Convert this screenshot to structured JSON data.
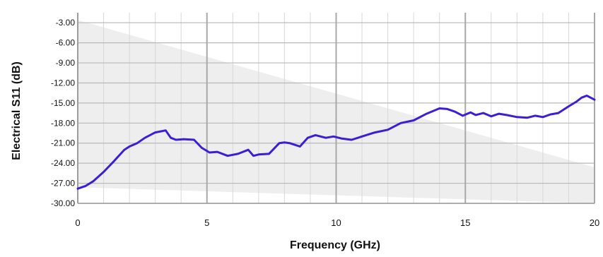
{
  "chart_data": {
    "type": "line",
    "title": "",
    "xlabel": "Frequency  (GHz)",
    "ylabel": "Electrical S11 (dB)",
    "xlim": [
      0,
      20
    ],
    "ylim": [
      -30,
      -1.5
    ],
    "x_ticks": [
      0,
      5,
      10,
      15,
      20
    ],
    "y_ticks": [
      -3.0,
      -6.0,
      -9.0,
      -12.0,
      -15.0,
      -18.0,
      -21.0,
      -24.0,
      -27.0,
      -30.0
    ],
    "x_tick_labels": [
      "0",
      "5",
      "10",
      "15",
      "20"
    ],
    "y_tick_labels": [
      "-3.00",
      "-6.00",
      "-9.00",
      "-12.00",
      "-15.00",
      "-18.00",
      "-21.00",
      "-24.00",
      "-27.00",
      "-30.00"
    ],
    "grid": true,
    "series": [
      {
        "color": "#3a1fd6",
        "x": [
          0.0,
          0.3,
          0.6,
          1.0,
          1.4,
          1.8,
          2.0,
          2.3,
          2.6,
          3.0,
          3.4,
          3.6,
          3.8,
          4.1,
          4.5,
          4.8,
          5.1,
          5.4,
          5.8,
          6.2,
          6.6,
          6.8,
          7.0,
          7.4,
          7.8,
          8.0,
          8.2,
          8.6,
          8.9,
          9.2,
          9.6,
          9.9,
          10.2,
          10.6,
          11.0,
          11.5,
          12.0,
          12.5,
          13.0,
          13.5,
          14.0,
          14.3,
          14.6,
          14.9,
          15.2,
          15.4,
          15.7,
          16.0,
          16.3,
          16.6,
          17.0,
          17.4,
          17.7,
          18.0,
          18.3,
          18.6,
          19.0,
          19.3,
          19.5,
          19.7,
          19.85,
          20.0
        ],
        "y": [
          -27.8,
          -27.4,
          -26.7,
          -25.3,
          -23.7,
          -22.0,
          -21.5,
          -21.0,
          -20.2,
          -19.4,
          -19.1,
          -20.2,
          -20.5,
          -20.4,
          -20.5,
          -21.7,
          -22.4,
          -22.3,
          -22.9,
          -22.6,
          -22.0,
          -22.9,
          -22.7,
          -22.6,
          -21.0,
          -20.9,
          -21.0,
          -21.5,
          -20.2,
          -19.8,
          -20.2,
          -20.0,
          -20.3,
          -20.5,
          -20.0,
          -19.4,
          -19.0,
          -18.0,
          -17.6,
          -16.6,
          -15.8,
          -15.9,
          -16.3,
          -16.9,
          -16.4,
          -16.8,
          -16.5,
          -17.0,
          -16.6,
          -16.8,
          -17.1,
          -17.2,
          -16.9,
          -17.1,
          -16.7,
          -16.5,
          -15.5,
          -14.8,
          -14.2,
          -13.9,
          -14.2,
          -14.5
        ]
      }
    ]
  }
}
